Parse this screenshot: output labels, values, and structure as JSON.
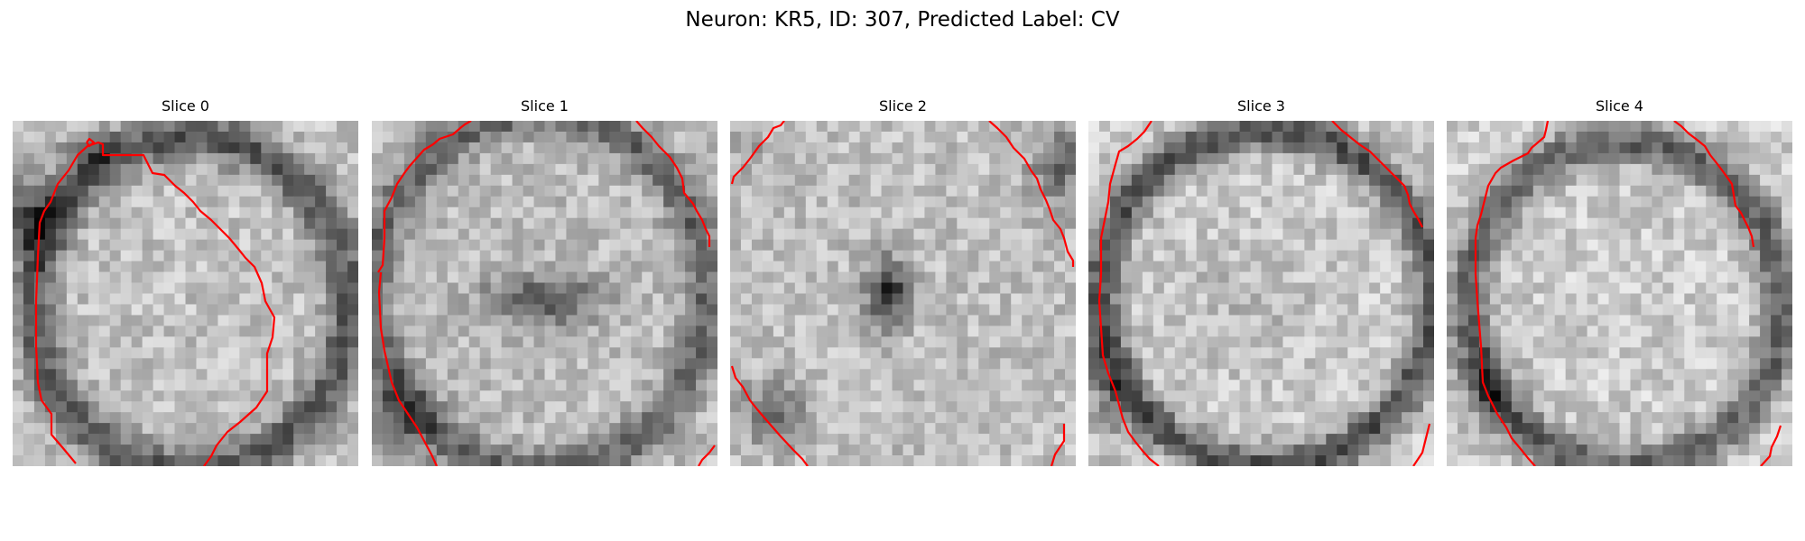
{
  "figure": {
    "title": "Neuron: KR5, ID: 307, Predicted Label: CV",
    "contour_color": "#ff0000"
  },
  "slices": [
    {
      "title": "Slice 0"
    },
    {
      "title": "Slice 1"
    },
    {
      "title": "Slice 2"
    },
    {
      "title": "Slice 3"
    },
    {
      "title": "Slice 4"
    }
  ]
}
